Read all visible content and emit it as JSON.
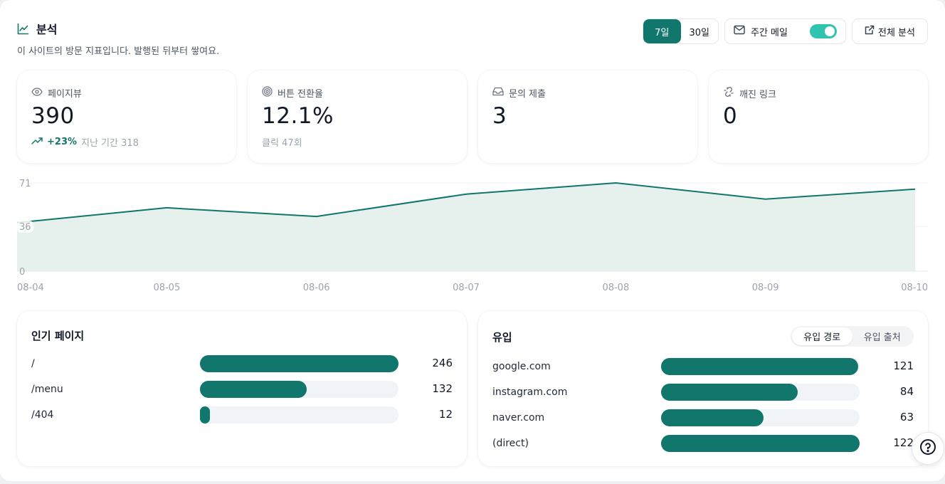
{
  "header": {
    "title": "분석",
    "subtitle": "이 사이트의 방문 지표입니다. 발행된 뒤부터 쌓여요."
  },
  "controls": {
    "range_options": [
      "7일",
      "30일"
    ],
    "selected_range": "7일",
    "weekly_mail_label": "주간 메일",
    "weekly_mail_enabled": true,
    "full_analysis_label": "전체 분석"
  },
  "stats": [
    {
      "icon": "eye-icon",
      "label": "페이지뷰",
      "value": "390",
      "delta": "+23%",
      "sub": "지난 기간 318"
    },
    {
      "icon": "target-icon",
      "label": "버튼 전환율",
      "value": "12.1%",
      "sub": "클릭 47회"
    },
    {
      "icon": "inbox-icon",
      "label": "문의 제출",
      "value": "3"
    },
    {
      "icon": "broken-link-icon",
      "label": "깨진 링크",
      "value": "0"
    }
  ],
  "chart_data": {
    "type": "area",
    "x": [
      "08-04",
      "08-05",
      "08-06",
      "08-07",
      "08-08",
      "08-09",
      "08-10"
    ],
    "values": [
      39,
      51,
      44,
      62,
      71,
      58,
      66
    ],
    "yticks": [
      0,
      36,
      71
    ],
    "ylim": [
      0,
      71
    ],
    "color": "#11766b",
    "fill": "#e6f1ee",
    "grid": true
  },
  "popular_pages": {
    "title": "인기 페이지",
    "items": [
      {
        "label": "/",
        "value": 246
      },
      {
        "label": "/menu",
        "value": 132
      },
      {
        "label": "/404",
        "value": 12
      }
    ]
  },
  "referrals": {
    "title": "유입",
    "tabs": [
      "유입 경로",
      "유입 출처"
    ],
    "active_tab": "유입 경로",
    "items": [
      {
        "label": "google.com",
        "value": 121
      },
      {
        "label": "instagram.com",
        "value": 84
      },
      {
        "label": "naver.com",
        "value": 63
      },
      {
        "label": "(direct)",
        "value": 122
      }
    ]
  },
  "colors": {
    "accent": "#11766b",
    "toggle_on": "#2ec4b0",
    "track": "#f0f3f7"
  }
}
